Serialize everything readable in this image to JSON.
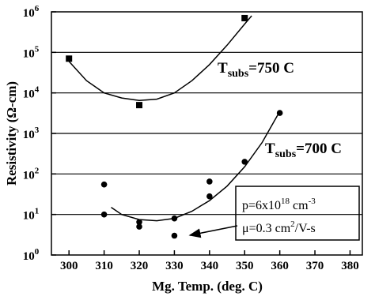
{
  "chart_data": {
    "type": "scatter",
    "x_label": "Mg. Temp. (deg. C)",
    "y_label": "Resistivity (Ω-cm)",
    "xlim": [
      295,
      383.5
    ],
    "xticks": [
      300,
      310,
      320,
      330,
      340,
      350,
      360,
      370,
      380
    ],
    "ylim": [
      1,
      1000000
    ],
    "yticks": [
      {
        "value": 1,
        "label": "10",
        "exponent": "0"
      },
      {
        "value": 10,
        "label": "10",
        "exponent": "1"
      },
      {
        "value": 100,
        "label": "10",
        "exponent": "2"
      },
      {
        "value": 1000,
        "label": "10",
        "exponent": "3"
      },
      {
        "value": 10000,
        "label": "10",
        "exponent": "4"
      },
      {
        "value": 100000,
        "label": "10",
        "exponent": "5"
      },
      {
        "value": 1000000,
        "label": "10",
        "exponent": "6"
      }
    ],
    "log_y": true,
    "grid": true,
    "color": "#000000",
    "series": [
      {
        "marker": "square",
        "x": [
          300,
          320,
          350
        ],
        "values": [
          70000,
          5000,
          700000
        ]
      },
      {
        "marker": "circle",
        "x": [
          310,
          310,
          320,
          320,
          330,
          330,
          340,
          340,
          350,
          360
        ],
        "values": [
          55,
          10,
          6.5,
          5,
          8,
          3,
          65,
          28,
          200,
          3200
        ]
      },
      {
        "marker": "line",
        "x": [
          300,
          305,
          310,
          315,
          320,
          325,
          330,
          335,
          340,
          345,
          350,
          352
        ],
        "values": [
          60000,
          20000,
          10000,
          7500,
          6500,
          7000,
          10000,
          20000,
          50000,
          150000,
          500000,
          800000
        ]
      },
      {
        "marker": "line",
        "x": [
          312,
          315,
          320,
          325,
          330,
          335,
          340,
          345,
          350,
          355,
          360
        ],
        "values": [
          15,
          10,
          7.5,
          7,
          8,
          12,
          22,
          50,
          150,
          600,
          3500
        ]
      }
    ],
    "annotations": [
      {
        "text": "T",
        "sub": "subs",
        "rest": "=750 C"
      },
      {
        "text": "T",
        "sub": "subs",
        "rest": "=700 C"
      }
    ],
    "box": [
      [
        {
          "text": "p=6x10"
        },
        {
          "text": "18",
          "sup": true
        },
        {
          "text": " cm"
        },
        {
          "text": "-3",
          "sup": true
        }
      ],
      [
        {
          "text": "μ=0.3 cm"
        },
        {
          "text": "2",
          "sup": true
        },
        {
          "text": "/V-s"
        }
      ]
    ]
  }
}
